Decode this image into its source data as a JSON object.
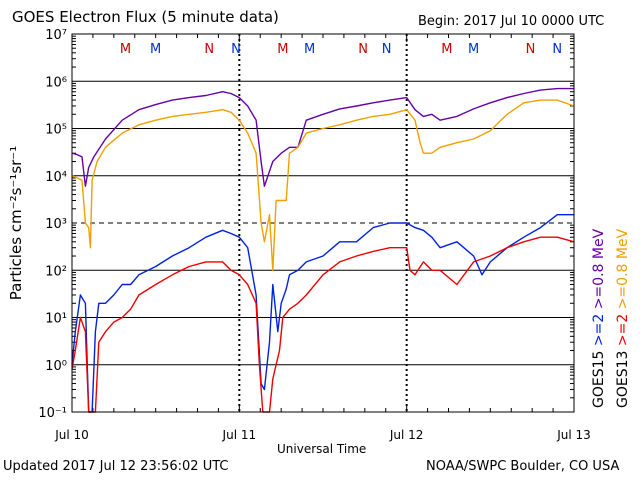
{
  "header": {
    "title": "GOES Electron Flux (5 minute data)",
    "begin": "Begin: 2017 Jul 10 0000 UTC"
  },
  "footer": {
    "updated": "Updated 2017 Jul 12 23:56:02 UTC",
    "credit": "NOAA/SWPC Boulder, CO USA"
  },
  "colors": {
    "goes15_08": "#6600aa",
    "goes13_08": "#f0a000",
    "goes15_2": "#0022dd",
    "goes13_2": "#ee0000",
    "marker_M": "#cc0000",
    "marker_N": "#0033cc"
  },
  "chart_data": {
    "type": "line",
    "title": "GOES Electron Flux (5 minute data)",
    "xlabel": "Universal Time",
    "ylabel": "Particles cm⁻²s⁻¹sr⁻¹",
    "y_scale": "log",
    "ylim": [
      0.1,
      10000000
    ],
    "xlim": [
      "2017-07-10",
      "2017-07-13"
    ],
    "x_tick_labels": [
      "Jul 10",
      "Jul 11",
      "Jul 12",
      "Jul 13"
    ],
    "y_tick_labels": [
      "10⁻¹",
      "10⁰",
      "10¹",
      "10²",
      "10³",
      "10⁴",
      "10⁵",
      "10⁶",
      "10⁷"
    ],
    "grid": true,
    "dashed_reference_y": 1000,
    "markers": [
      {
        "label": "M",
        "x": 0.32,
        "color": "#cc0000"
      },
      {
        "label": "M",
        "x": 0.5,
        "color": "#0033cc"
      },
      {
        "label": "N",
        "x": 0.82,
        "color": "#cc0000"
      },
      {
        "label": "N",
        "x": 0.98,
        "color": "#0033cc"
      },
      {
        "label": "M",
        "x": 1.26,
        "color": "#cc0000"
      },
      {
        "label": "M",
        "x": 1.42,
        "color": "#0033cc"
      },
      {
        "label": "N",
        "x": 1.74,
        "color": "#cc0000"
      },
      {
        "label": "N",
        "x": 1.88,
        "color": "#0033cc"
      },
      {
        "label": "M",
        "x": 2.24,
        "color": "#cc0000"
      },
      {
        "label": "M",
        "x": 2.4,
        "color": "#0033cc"
      },
      {
        "label": "N",
        "x": 2.74,
        "color": "#cc0000"
      },
      {
        "label": "N",
        "x": 2.9,
        "color": "#0033cc"
      }
    ],
    "legend": [
      {
        "text": ">=0.8 MeV",
        "color": "#6600aa"
      },
      {
        "text": ">=0.8 MeV",
        "color": "#f0a000"
      },
      {
        "text": ">=2",
        "color": "#0022dd"
      },
      {
        "text": ">=2",
        "color": "#ee0000"
      },
      {
        "text": "GOES15",
        "color": "#000000"
      },
      {
        "text": "GOES13",
        "color": "#000000"
      }
    ],
    "series": [
      {
        "name": "GOES15 >=0.8 MeV",
        "color": "#6600aa",
        "x": [
          0.0,
          0.03,
          0.06,
          0.08,
          0.1,
          0.13,
          0.2,
          0.3,
          0.4,
          0.5,
          0.6,
          0.7,
          0.8,
          0.9,
          0.95,
          1.0,
          1.05,
          1.1,
          1.13,
          1.15,
          1.2,
          1.25,
          1.3,
          1.35,
          1.4,
          1.5,
          1.6,
          1.7,
          1.8,
          1.9,
          2.0,
          2.05,
          2.1,
          2.15,
          2.2,
          2.3,
          2.4,
          2.5,
          2.6,
          2.7,
          2.8,
          2.9,
          3.0
        ],
        "y": [
          30000,
          28000,
          25000,
          6000,
          15000,
          25000,
          60000,
          150000,
          250000,
          320000,
          400000,
          450000,
          500000,
          600000,
          550000,
          450000,
          300000,
          150000,
          20000,
          6000,
          20000,
          30000,
          40000,
          40000,
          150000,
          200000,
          260000,
          300000,
          350000,
          400000,
          450000,
          250000,
          180000,
          200000,
          150000,
          180000,
          260000,
          350000,
          450000,
          550000,
          650000,
          700000,
          700000
        ]
      },
      {
        "name": "GOES13 >=0.8 MeV",
        "color": "#f0a000",
        "x": [
          0.0,
          0.03,
          0.06,
          0.08,
          0.1,
          0.11,
          0.12,
          0.15,
          0.2,
          0.3,
          0.4,
          0.5,
          0.6,
          0.7,
          0.8,
          0.9,
          0.95,
          1.0,
          1.05,
          1.1,
          1.13,
          1.15,
          1.18,
          1.2,
          1.22,
          1.25,
          1.28,
          1.3,
          1.35,
          1.4,
          1.5,
          1.6,
          1.7,
          1.8,
          1.9,
          2.0,
          2.05,
          2.08,
          2.1,
          2.15,
          2.2,
          2.3,
          2.4,
          2.5,
          2.6,
          2.7,
          2.8,
          2.9,
          3.0
        ],
        "y": [
          10000,
          9000,
          8000,
          1000,
          800,
          300,
          8000,
          20000,
          40000,
          80000,
          120000,
          150000,
          180000,
          200000,
          220000,
          250000,
          220000,
          150000,
          80000,
          30000,
          1000,
          400,
          1500,
          100,
          3000,
          3000,
          3000,
          30000,
          40000,
          80000,
          100000,
          120000,
          150000,
          180000,
          200000,
          250000,
          150000,
          50000,
          30000,
          30000,
          40000,
          50000,
          60000,
          90000,
          200000,
          350000,
          400000,
          400000,
          300000
        ]
      },
      {
        "name": "GOES15 >=2",
        "color": "#0022dd",
        "x": [
          0.0,
          0.02,
          0.05,
          0.08,
          0.1,
          0.12,
          0.14,
          0.16,
          0.2,
          0.25,
          0.3,
          0.35,
          0.4,
          0.5,
          0.6,
          0.7,
          0.8,
          0.9,
          0.95,
          1.0,
          1.05,
          1.1,
          1.13,
          1.15,
          1.18,
          1.2,
          1.23,
          1.25,
          1.28,
          1.3,
          1.35,
          1.4,
          1.5,
          1.6,
          1.7,
          1.8,
          1.9,
          2.0,
          2.05,
          2.1,
          2.15,
          2.2,
          2.3,
          2.4,
          2.45,
          2.5,
          2.6,
          2.7,
          2.8,
          2.9,
          3.0
        ],
        "y": [
          1.0,
          5,
          30,
          20,
          0.1,
          0.1,
          5,
          20,
          20,
          30,
          50,
          50,
          80,
          120,
          200,
          300,
          500,
          700,
          600,
          500,
          300,
          30,
          0.4,
          0.3,
          3,
          50,
          5,
          20,
          40,
          80,
          100,
          150,
          200,
          400,
          400,
          800,
          1000,
          1000,
          800,
          700,
          500,
          300,
          400,
          200,
          80,
          150,
          300,
          500,
          800,
          1500,
          1500
        ]
      },
      {
        "name": "GOES13 >=2",
        "color": "#ee0000",
        "x": [
          0.0,
          0.02,
          0.05,
          0.08,
          0.1,
          0.12,
          0.14,
          0.16,
          0.2,
          0.25,
          0.3,
          0.35,
          0.4,
          0.5,
          0.6,
          0.7,
          0.8,
          0.9,
          0.95,
          1.0,
          1.05,
          1.1,
          1.12,
          1.14,
          1.16,
          1.18,
          1.2,
          1.22,
          1.24,
          1.26,
          1.3,
          1.35,
          1.4,
          1.5,
          1.6,
          1.7,
          1.8,
          1.9,
          2.0,
          2.02,
          2.05,
          2.1,
          2.15,
          2.2,
          2.3,
          2.4,
          2.5,
          2.6,
          2.7,
          2.8,
          2.9,
          3.0
        ],
        "y": [
          0.8,
          2,
          10,
          5,
          0.1,
          0.1,
          0.1,
          3,
          5,
          8,
          10,
          15,
          30,
          50,
          80,
          120,
          150,
          150,
          100,
          80,
          50,
          20,
          1,
          0.1,
          0.1,
          0.1,
          0.5,
          1,
          2,
          10,
          15,
          20,
          30,
          80,
          150,
          200,
          250,
          300,
          300,
          100,
          80,
          150,
          100,
          100,
          50,
          150,
          200,
          300,
          400,
          500,
          500,
          400
        ]
      }
    ]
  }
}
